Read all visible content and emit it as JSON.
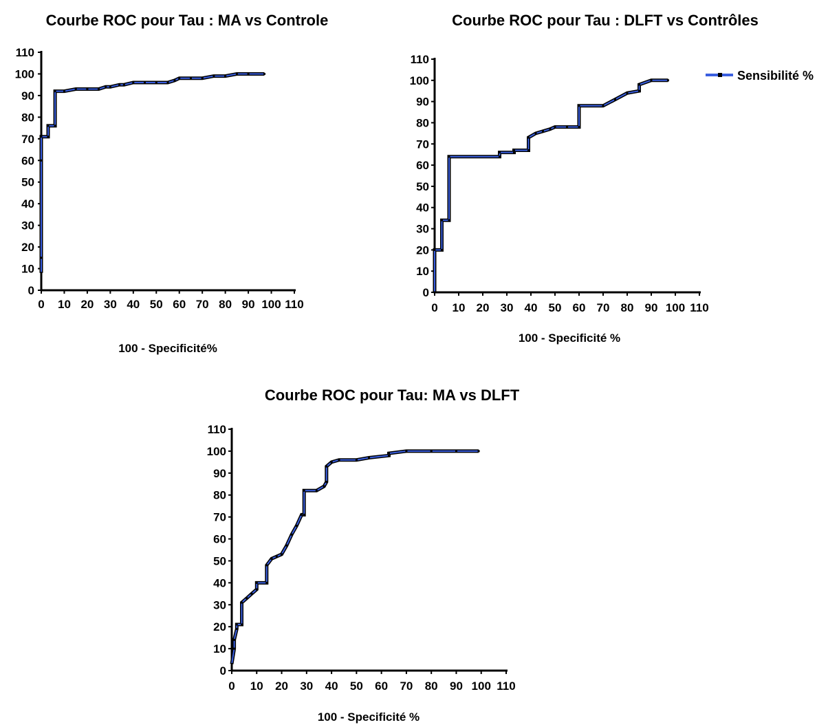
{
  "chart_data": [
    {
      "type": "line",
      "title": "Courbe ROC pour Tau : MA vs Controle",
      "xlabel": "100 - Specificité%",
      "ylabel": "",
      "xlim": [
        0,
        110
      ],
      "ylim": [
        0,
        110
      ],
      "xticks": [
        0,
        10,
        20,
        30,
        40,
        50,
        60,
        70,
        80,
        90,
        100,
        110
      ],
      "yticks": [
        0,
        10,
        20,
        30,
        40,
        50,
        60,
        70,
        80,
        90,
        100,
        110
      ],
      "colors": {
        "fill": "#3a5fe0",
        "outline": "#000000"
      },
      "series": [
        {
          "x": [
            0,
            0,
            0,
            0,
            3,
            3,
            6,
            6,
            10,
            15,
            20,
            25,
            28,
            30,
            34,
            36,
            40,
            45,
            50,
            55,
            58,
            60,
            65,
            70,
            75,
            80,
            85,
            90,
            97
          ],
          "y": [
            8,
            15,
            60,
            71,
            71,
            76,
            76,
            92,
            92,
            93,
            93,
            93,
            94,
            94,
            95,
            95,
            96,
            96,
            96,
            96,
            97,
            98,
            98,
            98,
            99,
            99,
            100,
            100,
            100
          ]
        }
      ]
    },
    {
      "type": "line",
      "title": "Courbe ROC pour Tau : DLFT vs Contrôles",
      "xlabel": "100 - Specificité %",
      "ylabel": "",
      "xlim": [
        0,
        110
      ],
      "ylim": [
        0,
        110
      ],
      "xticks": [
        0,
        10,
        20,
        30,
        40,
        50,
        60,
        70,
        80,
        90,
        100,
        110
      ],
      "yticks": [
        0,
        10,
        20,
        30,
        40,
        50,
        60,
        70,
        80,
        90,
        100,
        110
      ],
      "legend": {
        "position": "top-right"
      },
      "colors": {
        "fill": "#3a5fe0",
        "outline": "#000000"
      },
      "series": [
        {
          "name": "Sensibilité %",
          "x": [
            0,
            0,
            3,
            3,
            6,
            6,
            27,
            27,
            33,
            33,
            39,
            39,
            42,
            45,
            48,
            50,
            55,
            60,
            60,
            70,
            75,
            80,
            85,
            85,
            90,
            97
          ],
          "y": [
            0,
            20,
            20,
            34,
            34,
            64,
            64,
            66,
            66,
            67,
            67,
            73,
            75,
            76,
            77,
            78,
            78,
            78,
            88,
            88,
            91,
            94,
            95,
            98,
            100,
            100
          ]
        }
      ]
    },
    {
      "type": "line",
      "title": "Courbe ROC pour Tau: MA vs DLFT",
      "xlabel": "100 - Specificité %",
      "ylabel": "",
      "xlim": [
        0,
        110
      ],
      "ylim": [
        0,
        110
      ],
      "xticks": [
        0,
        10,
        20,
        30,
        40,
        50,
        60,
        70,
        80,
        90,
        100,
        110
      ],
      "yticks": [
        0,
        10,
        20,
        30,
        40,
        50,
        60,
        70,
        80,
        90,
        100,
        110
      ],
      "colors": {
        "fill": "#3a5fe0",
        "outline": "#000000"
      },
      "series": [
        {
          "x": [
            0,
            1,
            1,
            2,
            2,
            4,
            4,
            6,
            8,
            10,
            10,
            14,
            14,
            16,
            18,
            20,
            22,
            24,
            26,
            28,
            29,
            29,
            34,
            37,
            38,
            38,
            40,
            40,
            43,
            50,
            55,
            63,
            63,
            70,
            80,
            90,
            99
          ],
          "y": [
            3,
            10,
            14,
            19,
            21,
            21,
            31,
            33,
            35,
            37,
            40,
            40,
            48,
            51,
            52,
            53,
            57,
            62,
            66,
            71,
            71,
            82,
            82,
            84,
            86,
            93,
            95,
            95,
            96,
            96,
            97,
            98,
            99,
            100,
            100,
            100,
            100
          ]
        }
      ]
    }
  ]
}
